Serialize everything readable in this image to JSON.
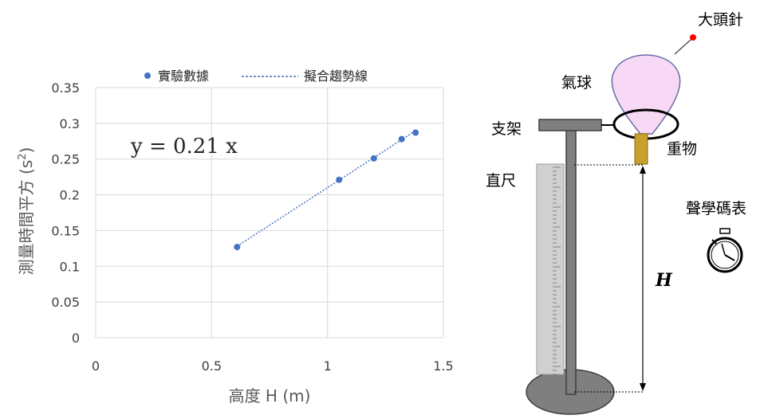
{
  "chart_data": {
    "type": "scatter",
    "x_ticks": [
      "0",
      "0.5",
      "1",
      "1.5"
    ],
    "y_ticks": [
      "0",
      "0.05",
      "0.1",
      "0.15",
      "0.2",
      "0.25",
      "0.3",
      "0.35"
    ],
    "xlim": [
      0,
      1.5
    ],
    "ylim": [
      0,
      0.35
    ],
    "xlabel": "高度 H (m)",
    "ylabel_main": "測量時間平方 (s",
    "ylabel_sup": "2",
    "ylabel_end": ")",
    "grid": true,
    "legend_position": "top",
    "series": [
      {
        "name": "實驗數據",
        "kind": "points",
        "color": "#4472C4",
        "x": [
          0.61,
          1.05,
          1.2,
          1.32,
          1.38
        ],
        "y": [
          0.127,
          0.221,
          0.251,
          0.278,
          0.287
        ]
      },
      {
        "name": "擬合趨勢線",
        "kind": "trendline",
        "color": "#4472C4",
        "slope": 0.21,
        "x_range": [
          0.61,
          1.38
        ]
      }
    ],
    "annotation": "y = 0.21 x"
  },
  "diagram": {
    "labels": {
      "pin": "大頭針",
      "balloon": "氣球",
      "stand": "支架",
      "weight": "重物",
      "ruler": "直尺",
      "stopwatch": "聲學碼表",
      "height": "H"
    },
    "colors": {
      "balloon_fill": "#F8D9F5",
      "balloon_stroke": "#6A6AA8",
      "stand_fill": "#7F7F7F",
      "weight_fill": "#C8A02E",
      "pin_head": "#FF0000",
      "ruler_fill": "#CFCFCF"
    }
  }
}
